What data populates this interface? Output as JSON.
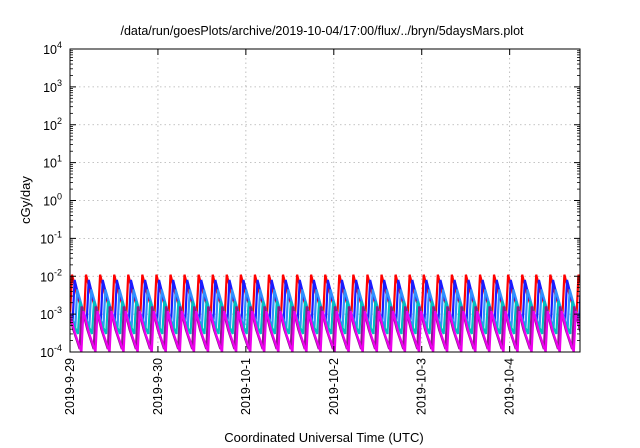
{
  "chart_data": {
    "type": "line",
    "title": "/data/run/goesPlots/archive/2019-10-04/17:00/flux/../bryn/5daysMars.plot",
    "xlabel": "Coordinated Universal Time (UTC)",
    "ylabel": "cGy/day",
    "yscale": "log",
    "ylim": [
      0.0001,
      10000
    ],
    "ytick_exponents": [
      -4,
      -3,
      -2,
      -1,
      0,
      1,
      2,
      3,
      4
    ],
    "x_categories": [
      "2019-9-29",
      "2019-9-30",
      "2019-10-1",
      "2019-10-2",
      "2019-10-3",
      "2019-10-4"
    ],
    "x_range_days": [
      0,
      5.8
    ],
    "grid": true,
    "legend": "none",
    "sawtooth_period_days": 0.16,
    "series": [
      {
        "color": "#ff0000",
        "peak": 0.011,
        "trough": 0.0009,
        "phase": 0.0
      },
      {
        "color": "#1a1aff",
        "peak": 0.008,
        "trough": 0.0006,
        "phase": 0.03
      },
      {
        "color": "#2f8fff",
        "peak": 0.0045,
        "trough": 0.00045,
        "phase": 0.06
      },
      {
        "color": "#00c0c0",
        "peak": 0.0022,
        "trough": 0.0003,
        "phase": 0.09
      },
      {
        "color": "#8c1a8c",
        "peak": 0.0016,
        "trough": 0.00012,
        "phase": 0.11
      },
      {
        "color": "#ee00ee",
        "peak": 0.0012,
        "trough": 0.0001,
        "phase": 0.13
      }
    ]
  }
}
